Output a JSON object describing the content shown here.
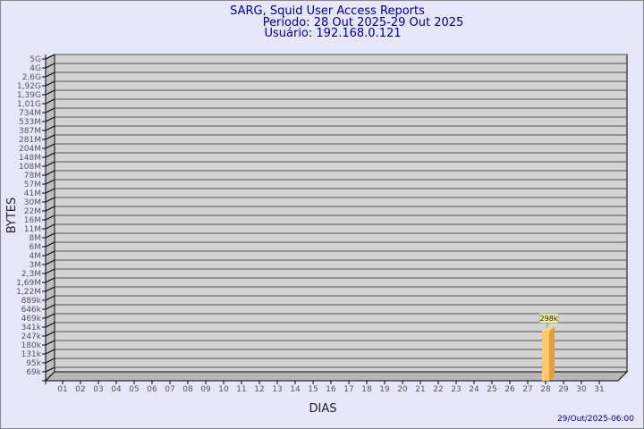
{
  "chart_data": {
    "type": "bar",
    "title": "SARG, Squid User Access Reports",
    "subtitle_period": "Período: 28 Out 2025-29 Out 2025",
    "subtitle_user": "Usuário: 192.168.0.121",
    "xlabel": "DIAS",
    "ylabel": "BYTES",
    "y_scale": "log",
    "grid": true,
    "y_ticks": [
      "5G",
      "4G",
      "2,6G",
      "1,92G",
      "1,39G",
      "1,01G",
      "734M",
      "533M",
      "387M",
      "281M",
      "204M",
      "148M",
      "108M",
      "78M",
      "57M",
      "41M",
      "30M",
      "22M",
      "16M",
      "11M",
      "8M",
      "6M",
      "4M",
      "3M",
      "2,3M",
      "1,69M",
      "1,22M",
      "889k",
      "646k",
      "469k",
      "341k",
      "247k",
      "180k",
      "131k",
      "95k",
      "69k"
    ],
    "categories": [
      "01",
      "02",
      "03",
      "04",
      "05",
      "06",
      "07",
      "08",
      "09",
      "10",
      "11",
      "12",
      "13",
      "14",
      "15",
      "16",
      "17",
      "18",
      "19",
      "20",
      "21",
      "22",
      "23",
      "24",
      "25",
      "26",
      "27",
      "28",
      "29",
      "30",
      "31"
    ],
    "bars": [
      {
        "category": "28",
        "value": 298000,
        "label": "298k"
      }
    ],
    "colors": {
      "bar": "#ffc86a",
      "bar_side": "#e0a040",
      "wall": "#d3d3d3",
      "title": "#00008b"
    }
  },
  "footer": {
    "timestamp": "29/Out/2025-06:00"
  }
}
